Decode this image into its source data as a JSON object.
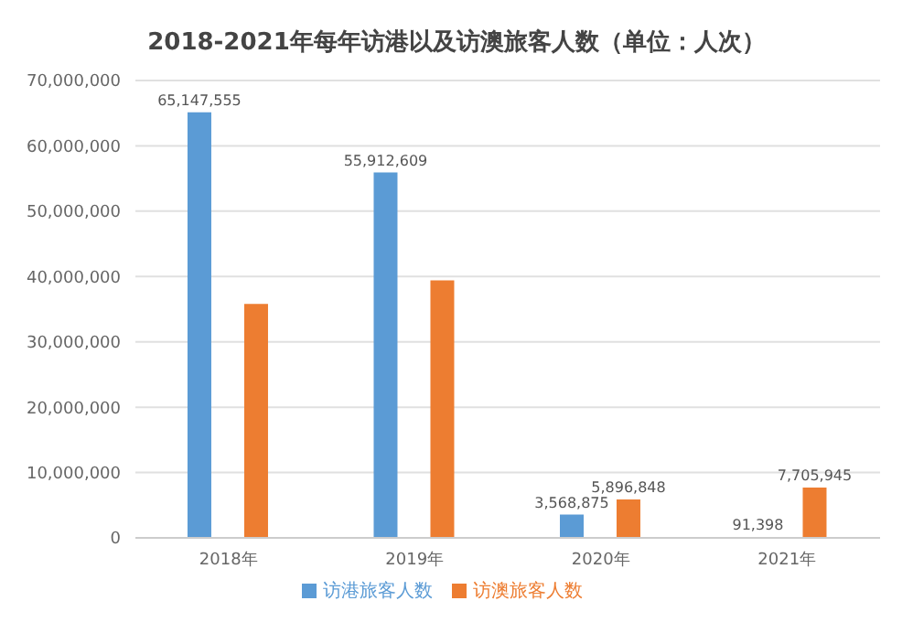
{
  "chart_data": {
    "type": "bar",
    "title": "2018-2021年每年访港以及访澳旅客人数（单位：人次）",
    "categories": [
      "2018年",
      "2019年",
      "2020年",
      "2021年"
    ],
    "series": [
      {
        "name": "访港旅客人数",
        "color": "#5b9bd5",
        "values": [
          65147555,
          55912609,
          3568875,
          91398
        ],
        "value_labels": [
          "65,147,555",
          "55,912,609",
          "3,568,875",
          "91,398"
        ]
      },
      {
        "name": "访澳旅客人数",
        "color": "#ed7d31",
        "values": [
          35800000,
          39400000,
          5896848,
          7705945
        ],
        "value_labels": [
          null,
          null,
          "5,896,848",
          "7,705,945"
        ]
      }
    ],
    "ylim": [
      0,
      70000000
    ],
    "yticks": [
      0,
      {
        "value": 10000000,
        "label": "10,000,000"
      },
      {
        "value": 20000000,
        "label": "20,000,000"
      },
      {
        "value": 30000000,
        "label": "30,000,000"
      },
      {
        "value": 40000000,
        "label": "40,000,000"
      },
      {
        "value": 50000000,
        "label": "50,000,000"
      },
      {
        "value": 60000000,
        "label": "60,000,000"
      },
      {
        "value": 70000000,
        "label": "70,000,000"
      }
    ],
    "grid": "y",
    "legend": "bottom"
  }
}
